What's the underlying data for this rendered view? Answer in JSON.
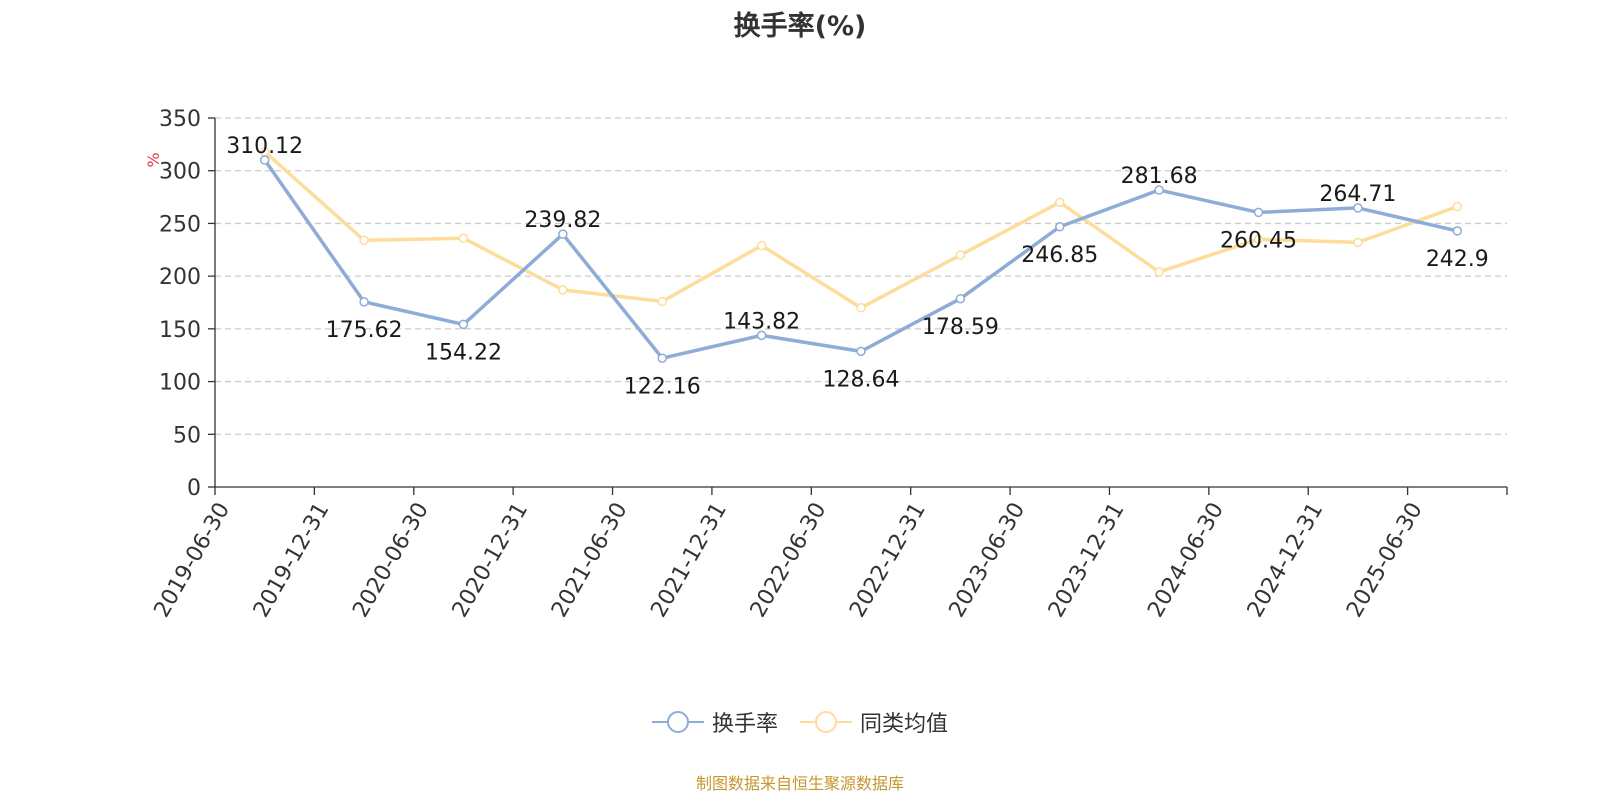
{
  "chart_data": {
    "type": "line",
    "title": "换手率(%)",
    "ylabel": "%",
    "ylim": [
      0,
      350
    ],
    "yticks": [
      0,
      50,
      100,
      150,
      200,
      250,
      300,
      350
    ],
    "grid": true,
    "legend_position": "bottom-center",
    "categories": [
      "2019-06-30",
      "2019-12-31",
      "2020-06-30",
      "2020-12-31",
      "2021-06-30",
      "2021-12-31",
      "2022-06-30",
      "2022-12-31",
      "2023-06-30",
      "2023-12-31",
      "2024-06-30",
      "2024-12-31",
      "2025-06-30"
    ],
    "series": [
      {
        "name": "换手率",
        "color": "#8eacd8",
        "values": [
          310.12,
          175.62,
          154.22,
          239.82,
          122.16,
          143.82,
          128.64,
          178.59,
          246.85,
          281.68,
          260.45,
          264.71,
          242.9
        ],
        "labels": [
          "310.12",
          "175.62",
          "154.22",
          "239.82",
          "122.16",
          "143.82",
          "128.64",
          "178.59",
          "246.85",
          "281.68",
          "260.45",
          "264.71",
          "242.9"
        ]
      },
      {
        "name": "同类均值",
        "color": "#fddc9c",
        "values": [
          318,
          234,
          236,
          187,
          176,
          229,
          170,
          220,
          270,
          204,
          235,
          232,
          266
        ]
      }
    ],
    "source_text": "制图数据来自恒生聚源数据库"
  }
}
